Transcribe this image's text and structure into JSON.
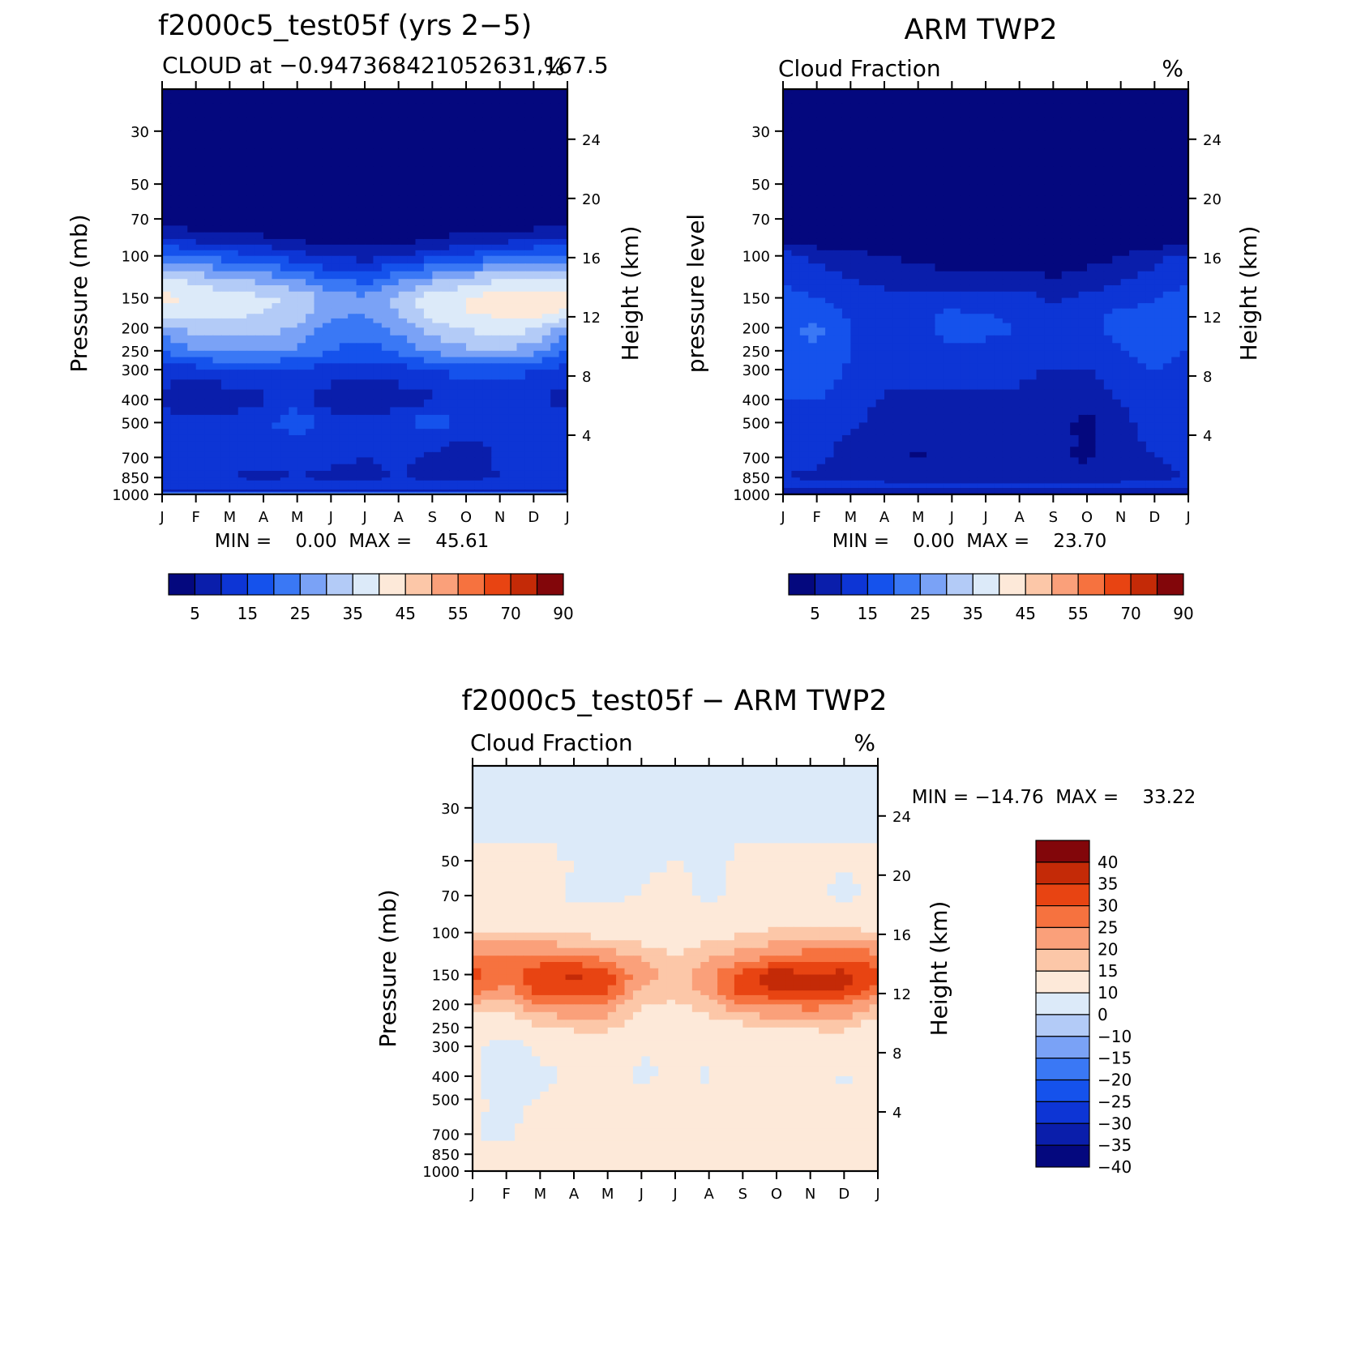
{
  "colors": {
    "fraction_scale": [
      "#04087e",
      "#0a1eab",
      "#0d35d5",
      "#1552ec",
      "#3a78f5",
      "#7aa2f6",
      "#b3cbf7",
      "#dceaf9",
      "#fde9d9",
      "#fcc7a8",
      "#faa07a",
      "#f6723f",
      "#e84412",
      "#c42a07",
      "#82060a"
    ],
    "diff_scale": [
      "#04087e",
      "#0a1eab",
      "#0d35d5",
      "#1552ec",
      "#3a78f5",
      "#7aa2f6",
      "#b3cbf7",
      "#dceaf9",
      "#fde9d9",
      "#fcc7a8",
      "#faa07a",
      "#f6723f",
      "#e84412",
      "#c42a07",
      "#82060a"
    ]
  },
  "chart_data": [
    {
      "id": "model",
      "type": "heatmap",
      "title": "f2000c5_test05f (yrs 2−5)",
      "subtitle": "CLOUD at −0.947368421052631,167.5",
      "units": "%",
      "ylabel": "Pressure (mb)",
      "ylabel_right": "Height (km)",
      "stats": "MIN =    0.00  MAX =    45.61",
      "x_ticks": [
        "J",
        "F",
        "M",
        "A",
        "M",
        "J",
        "J",
        "A",
        "S",
        "O",
        "N",
        "D",
        "J"
      ],
      "y_ticks": [
        30,
        50,
        70,
        100,
        150,
        200,
        250,
        300,
        400,
        500,
        700,
        850,
        1000
      ],
      "height_ticks": [
        24,
        20,
        16,
        12,
        8,
        4
      ],
      "ylim": [
        20,
        1000
      ],
      "levels": [
        0,
        5,
        10,
        15,
        20,
        25,
        30,
        35,
        40,
        45,
        50,
        55,
        60,
        70,
        80,
        90
      ],
      "colorbar_labels": [
        "5",
        "15",
        "25",
        "35",
        "45",
        "55",
        "70",
        "90"
      ],
      "pressure_levels": [
        20,
        30,
        50,
        70,
        85,
        100,
        125,
        150,
        175,
        200,
        250,
        300,
        400,
        500,
        600,
        700,
        850,
        925,
        970,
        1000
      ],
      "values": [
        [
          0,
          0,
          0,
          0,
          0,
          0,
          0,
          0,
          0,
          0,
          0,
          0,
          0
        ],
        [
          0,
          0,
          0,
          0,
          0,
          0,
          0,
          0,
          0,
          0,
          0,
          0,
          0
        ],
        [
          0,
          0,
          0,
          0,
          0,
          0,
          0,
          0,
          0,
          0,
          0,
          0,
          0
        ],
        [
          2,
          1,
          1,
          0.5,
          0.5,
          0,
          0,
          0,
          0,
          0.5,
          1,
          1,
          2
        ],
        [
          10,
          8,
          7,
          6,
          4,
          3,
          2,
          3,
          5,
          7,
          8,
          9,
          10
        ],
        [
          22,
          20,
          17,
          15,
          12,
          9,
          8,
          10,
          13,
          16,
          19,
          21,
          22
        ],
        [
          36,
          33,
          30,
          28,
          24,
          20,
          18,
          23,
          28,
          32,
          34,
          35,
          36
        ],
        [
          42,
          39,
          37,
          36,
          34,
          28,
          26,
          32,
          38,
          40,
          43,
          44,
          42
        ],
        [
          38,
          37,
          36,
          35,
          33,
          26,
          25,
          30,
          37,
          40,
          41,
          42,
          38
        ],
        [
          28,
          32,
          33,
          32,
          30,
          23,
          22,
          27,
          33,
          36,
          37,
          36,
          28
        ],
        [
          20,
          25,
          27,
          26,
          24,
          20,
          18,
          21,
          26,
          29,
          30,
          27,
          20
        ],
        [
          13,
          13,
          15,
          16,
          14,
          13,
          12,
          13,
          15,
          17,
          17,
          15,
          13
        ],
        [
          8,
          5,
          6,
          9,
          12,
          7,
          6,
          7,
          9,
          11,
          12,
          11,
          8
        ],
        [
          13,
          12,
          13,
          14,
          19,
          13,
          12,
          14,
          18,
          14,
          13,
          13,
          13
        ],
        [
          13,
          11,
          12,
          12,
          12,
          12,
          12,
          11,
          12,
          9,
          11,
          12,
          13
        ],
        [
          11,
          11,
          11,
          11,
          11,
          11,
          10,
          11,
          9,
          7,
          11,
          11,
          11
        ],
        [
          10,
          10,
          10,
          9,
          10,
          9,
          9,
          10,
          9,
          9,
          10,
          10,
          10
        ],
        [
          12,
          12,
          12,
          12,
          12,
          12,
          12,
          12,
          12,
          12,
          12,
          12,
          12
        ],
        [
          8,
          8,
          8,
          8,
          8,
          8,
          8,
          8,
          8,
          8,
          8,
          8,
          8
        ],
        [
          35,
          35,
          35,
          35,
          35,
          35,
          35,
          35,
          35,
          35,
          35,
          35,
          35
        ]
      ]
    },
    {
      "id": "obs",
      "type": "heatmap",
      "title": "ARM TWP2",
      "subtitle": "Cloud Fraction",
      "units": "%",
      "ylabel": "pressure level",
      "ylabel_right": "Height (km)",
      "stats": "MIN =    0.00  MAX =    23.70",
      "x_ticks": [
        "J",
        "F",
        "M",
        "A",
        "M",
        "J",
        "J",
        "A",
        "S",
        "O",
        "N",
        "D",
        "J"
      ],
      "y_ticks": [
        30,
        50,
        70,
        100,
        150,
        200,
        250,
        300,
        400,
        500,
        700,
        850,
        1000
      ],
      "height_ticks": [
        24,
        20,
        16,
        12,
        8,
        4
      ],
      "ylim": [
        20,
        1000
      ],
      "levels": [
        0,
        5,
        10,
        15,
        20,
        25,
        30,
        35,
        40,
        45,
        50,
        55,
        60,
        70,
        80,
        90
      ],
      "colorbar_labels": [
        "5",
        "15",
        "25",
        "35",
        "45",
        "55",
        "70",
        "90"
      ],
      "pressure_levels": [
        20,
        30,
        50,
        70,
        85,
        100,
        125,
        150,
        175,
        200,
        250,
        300,
        400,
        500,
        600,
        700,
        850,
        925,
        970,
        1000
      ],
      "values": [
        [
          0,
          0,
          0,
          0,
          0,
          0,
          0,
          0,
          0,
          0,
          0,
          0,
          0
        ],
        [
          0,
          0,
          0,
          0,
          0,
          0,
          0,
          0,
          0,
          0,
          0,
          0,
          0
        ],
        [
          0,
          0,
          0,
          0,
          0,
          0,
          0,
          0,
          0,
          0,
          0,
          0,
          0
        ],
        [
          0,
          0,
          0,
          0,
          0,
          0,
          0,
          0,
          0,
          0,
          0,
          0,
          0
        ],
        [
          2,
          1,
          0.5,
          0,
          0,
          0,
          0,
          0,
          0,
          0,
          0,
          0.5,
          2
        ],
        [
          12,
          9,
          7,
          5,
          4,
          3,
          2,
          3,
          2,
          3,
          5,
          8,
          12
        ],
        [
          15,
          12,
          10,
          8,
          7,
          6,
          6,
          7,
          5,
          7,
          9,
          12,
          15
        ],
        [
          16,
          15,
          13,
          12,
          11,
          12,
          11,
          12,
          9,
          11,
          13,
          15,
          16
        ],
        [
          18,
          18,
          14,
          13,
          13,
          16,
          15,
          14,
          12,
          13,
          16,
          16,
          16
        ],
        [
          19,
          21,
          15,
          14,
          14,
          17,
          16,
          15,
          14,
          14,
          17,
          17,
          17
        ],
        [
          18,
          20,
          15,
          14,
          13,
          14,
          14,
          13,
          13,
          12,
          15,
          16,
          15
        ],
        [
          17,
          18,
          14,
          13,
          12,
          12,
          12,
          11,
          10,
          10,
          14,
          15,
          14
        ],
        [
          15,
          15,
          13,
          9,
          9,
          9,
          9,
          9,
          7,
          6,
          10,
          13,
          13
        ],
        [
          14,
          13,
          11,
          8,
          8,
          9,
          9,
          9,
          6,
          4,
          9,
          12,
          12
        ],
        [
          13,
          12,
          9,
          8,
          7,
          8,
          8,
          8,
          7,
          4,
          8,
          11,
          12
        ],
        [
          12,
          11,
          8,
          7,
          4,
          7,
          6,
          7,
          6,
          4,
          7,
          10,
          11
        ],
        [
          10,
          9,
          9,
          9,
          8,
          9,
          8,
          9,
          8,
          8,
          9,
          9,
          10
        ],
        [
          12,
          12,
          11,
          11,
          11,
          11,
          11,
          11,
          11,
          11,
          11,
          12,
          12
        ],
        [
          6,
          6,
          6,
          6,
          6,
          6,
          6,
          6,
          6,
          6,
          6,
          6,
          6
        ],
        [
          4,
          4,
          4,
          4,
          4,
          4,
          4,
          4,
          4,
          4,
          4,
          4,
          4
        ]
      ]
    },
    {
      "id": "diff",
      "type": "heatmap",
      "title": "f2000c5_test05f − ARM TWP2",
      "subtitle": "Cloud Fraction",
      "units": "%",
      "ylabel": "Pressure (mb)",
      "ylabel_right": "Height (km)",
      "stats": "MIN = −14.76  MAX =    33.22",
      "x_ticks": [
        "J",
        "F",
        "M",
        "A",
        "M",
        "J",
        "J",
        "A",
        "S",
        "O",
        "N",
        "D",
        "J"
      ],
      "y_ticks": [
        30,
        50,
        70,
        100,
        150,
        200,
        250,
        300,
        400,
        500,
        700,
        850,
        1000
      ],
      "height_ticks": [
        24,
        20,
        16,
        12,
        8,
        4
      ],
      "ylim": [
        20,
        1000
      ],
      "levels": [
        -50,
        -40,
        -35,
        -30,
        -25,
        -20,
        -15,
        -10,
        0,
        10,
        15,
        20,
        25,
        30,
        35,
        40,
        50
      ],
      "colorbar_labels": [
        "40",
        "35",
        "30",
        "25",
        "20",
        "15",
        "10",
        "0",
        "−10",
        "−15",
        "−20",
        "−25",
        "−30",
        "−35",
        "−40"
      ],
      "pressure_levels": [
        20,
        30,
        50,
        70,
        85,
        100,
        125,
        150,
        175,
        200,
        250,
        300,
        400,
        500,
        600,
        700,
        850,
        925,
        970,
        1000
      ],
      "values": [
        [
          -2,
          -2,
          -2,
          -2,
          -2,
          -2,
          -2,
          -2,
          -2,
          -2,
          -2,
          -2,
          -2
        ],
        [
          -2,
          -2,
          -2,
          -2,
          -2,
          -2,
          -2,
          -2,
          -2,
          -2,
          -2,
          -2,
          -2
        ],
        [
          1,
          1,
          1,
          0,
          -1,
          -1,
          0,
          -1,
          1,
          1,
          1,
          1,
          1
        ],
        [
          3,
          3,
          2,
          -1,
          -1,
          0,
          2,
          -1,
          1,
          2,
          2,
          -2,
          2
        ],
        [
          4,
          5,
          4,
          3,
          2,
          2,
          3,
          2,
          3,
          4,
          5,
          5,
          5
        ],
        [
          9,
          11,
          10,
          9,
          7,
          6,
          6,
          7,
          9,
          12,
          13,
          13,
          9
        ],
        [
          22,
          20,
          21,
          20,
          18,
          14,
          10,
          14,
          17,
          20,
          22,
          22,
          22
        ],
        [
          27,
          22,
          29,
          31,
          27,
          17,
          13,
          18,
          27,
          33,
          30,
          32,
          27
        ],
        [
          22,
          18,
          28,
          28,
          26,
          14,
          13,
          17,
          28,
          30,
          30,
          30,
          22
        ],
        [
          14,
          12,
          20,
          20,
          19,
          10,
          9,
          13,
          20,
          21,
          22,
          21,
          14
        ],
        [
          5,
          5,
          9,
          11,
          11,
          6,
          6,
          7,
          8,
          11,
          11,
          12,
          5
        ],
        [
          3,
          -5,
          4,
          5,
          5,
          1,
          3,
          3,
          4,
          3,
          4,
          4,
          3
        ],
        [
          2,
          -8,
          -3,
          2,
          3,
          -2,
          2,
          -1,
          3,
          4,
          3,
          -1,
          2
        ],
        [
          2,
          -3,
          1,
          4,
          12,
          3,
          3,
          3,
          5,
          8,
          3,
          2,
          2
        ],
        [
          1,
          -2,
          2,
          4,
          5,
          3,
          3,
          3,
          5,
          4,
          3,
          2,
          1
        ],
        [
          0,
          -1,
          3,
          3,
          3,
          3,
          3,
          2,
          5,
          3,
          3,
          3,
          2
        ],
        [
          1,
          2,
          2,
          2,
          2,
          2,
          2,
          2,
          2,
          2,
          2,
          2,
          2
        ],
        [
          1,
          1,
          1,
          1,
          1,
          1,
          1,
          1,
          1,
          1,
          1,
          1,
          1
        ],
        [
          4,
          4,
          4,
          4,
          4,
          4,
          4,
          4,
          4,
          4,
          4,
          4,
          4
        ],
        [
          2,
          2,
          2,
          2,
          2,
          2,
          2,
          2,
          2,
          2,
          2,
          2,
          2
        ]
      ]
    }
  ]
}
